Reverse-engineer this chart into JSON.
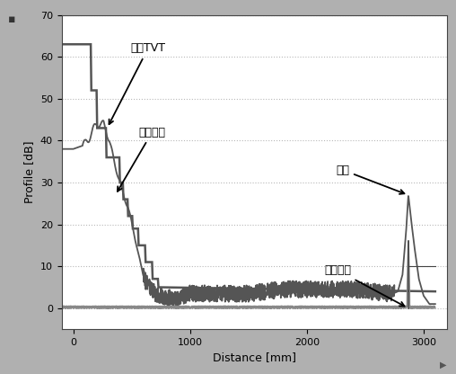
{
  "title": "",
  "xlabel": "Distance [mm]",
  "ylabel": "Profile [dB]",
  "xlim": [
    -100,
    3200
  ],
  "ylim": [
    -5,
    70
  ],
  "yticks": [
    0,
    10,
    20,
    30,
    40,
    50,
    60,
    70
  ],
  "xticks": [
    0,
    1000,
    2000,
    3000
  ],
  "grid_color": "#b8b8b8",
  "bg_color": "#ffffff",
  "outer_bg": "#b0b0b0",
  "line_color_tvt": "#555555",
  "line_color_echo": "#555555",
  "line_color_mark": "#888888",
  "line_color_vline": "#444444",
  "annotations": {
    "tvt_label": "默认TVT",
    "echo_label": "回波曲线",
    "level_label": "物位",
    "mark_label": "回波标记"
  }
}
